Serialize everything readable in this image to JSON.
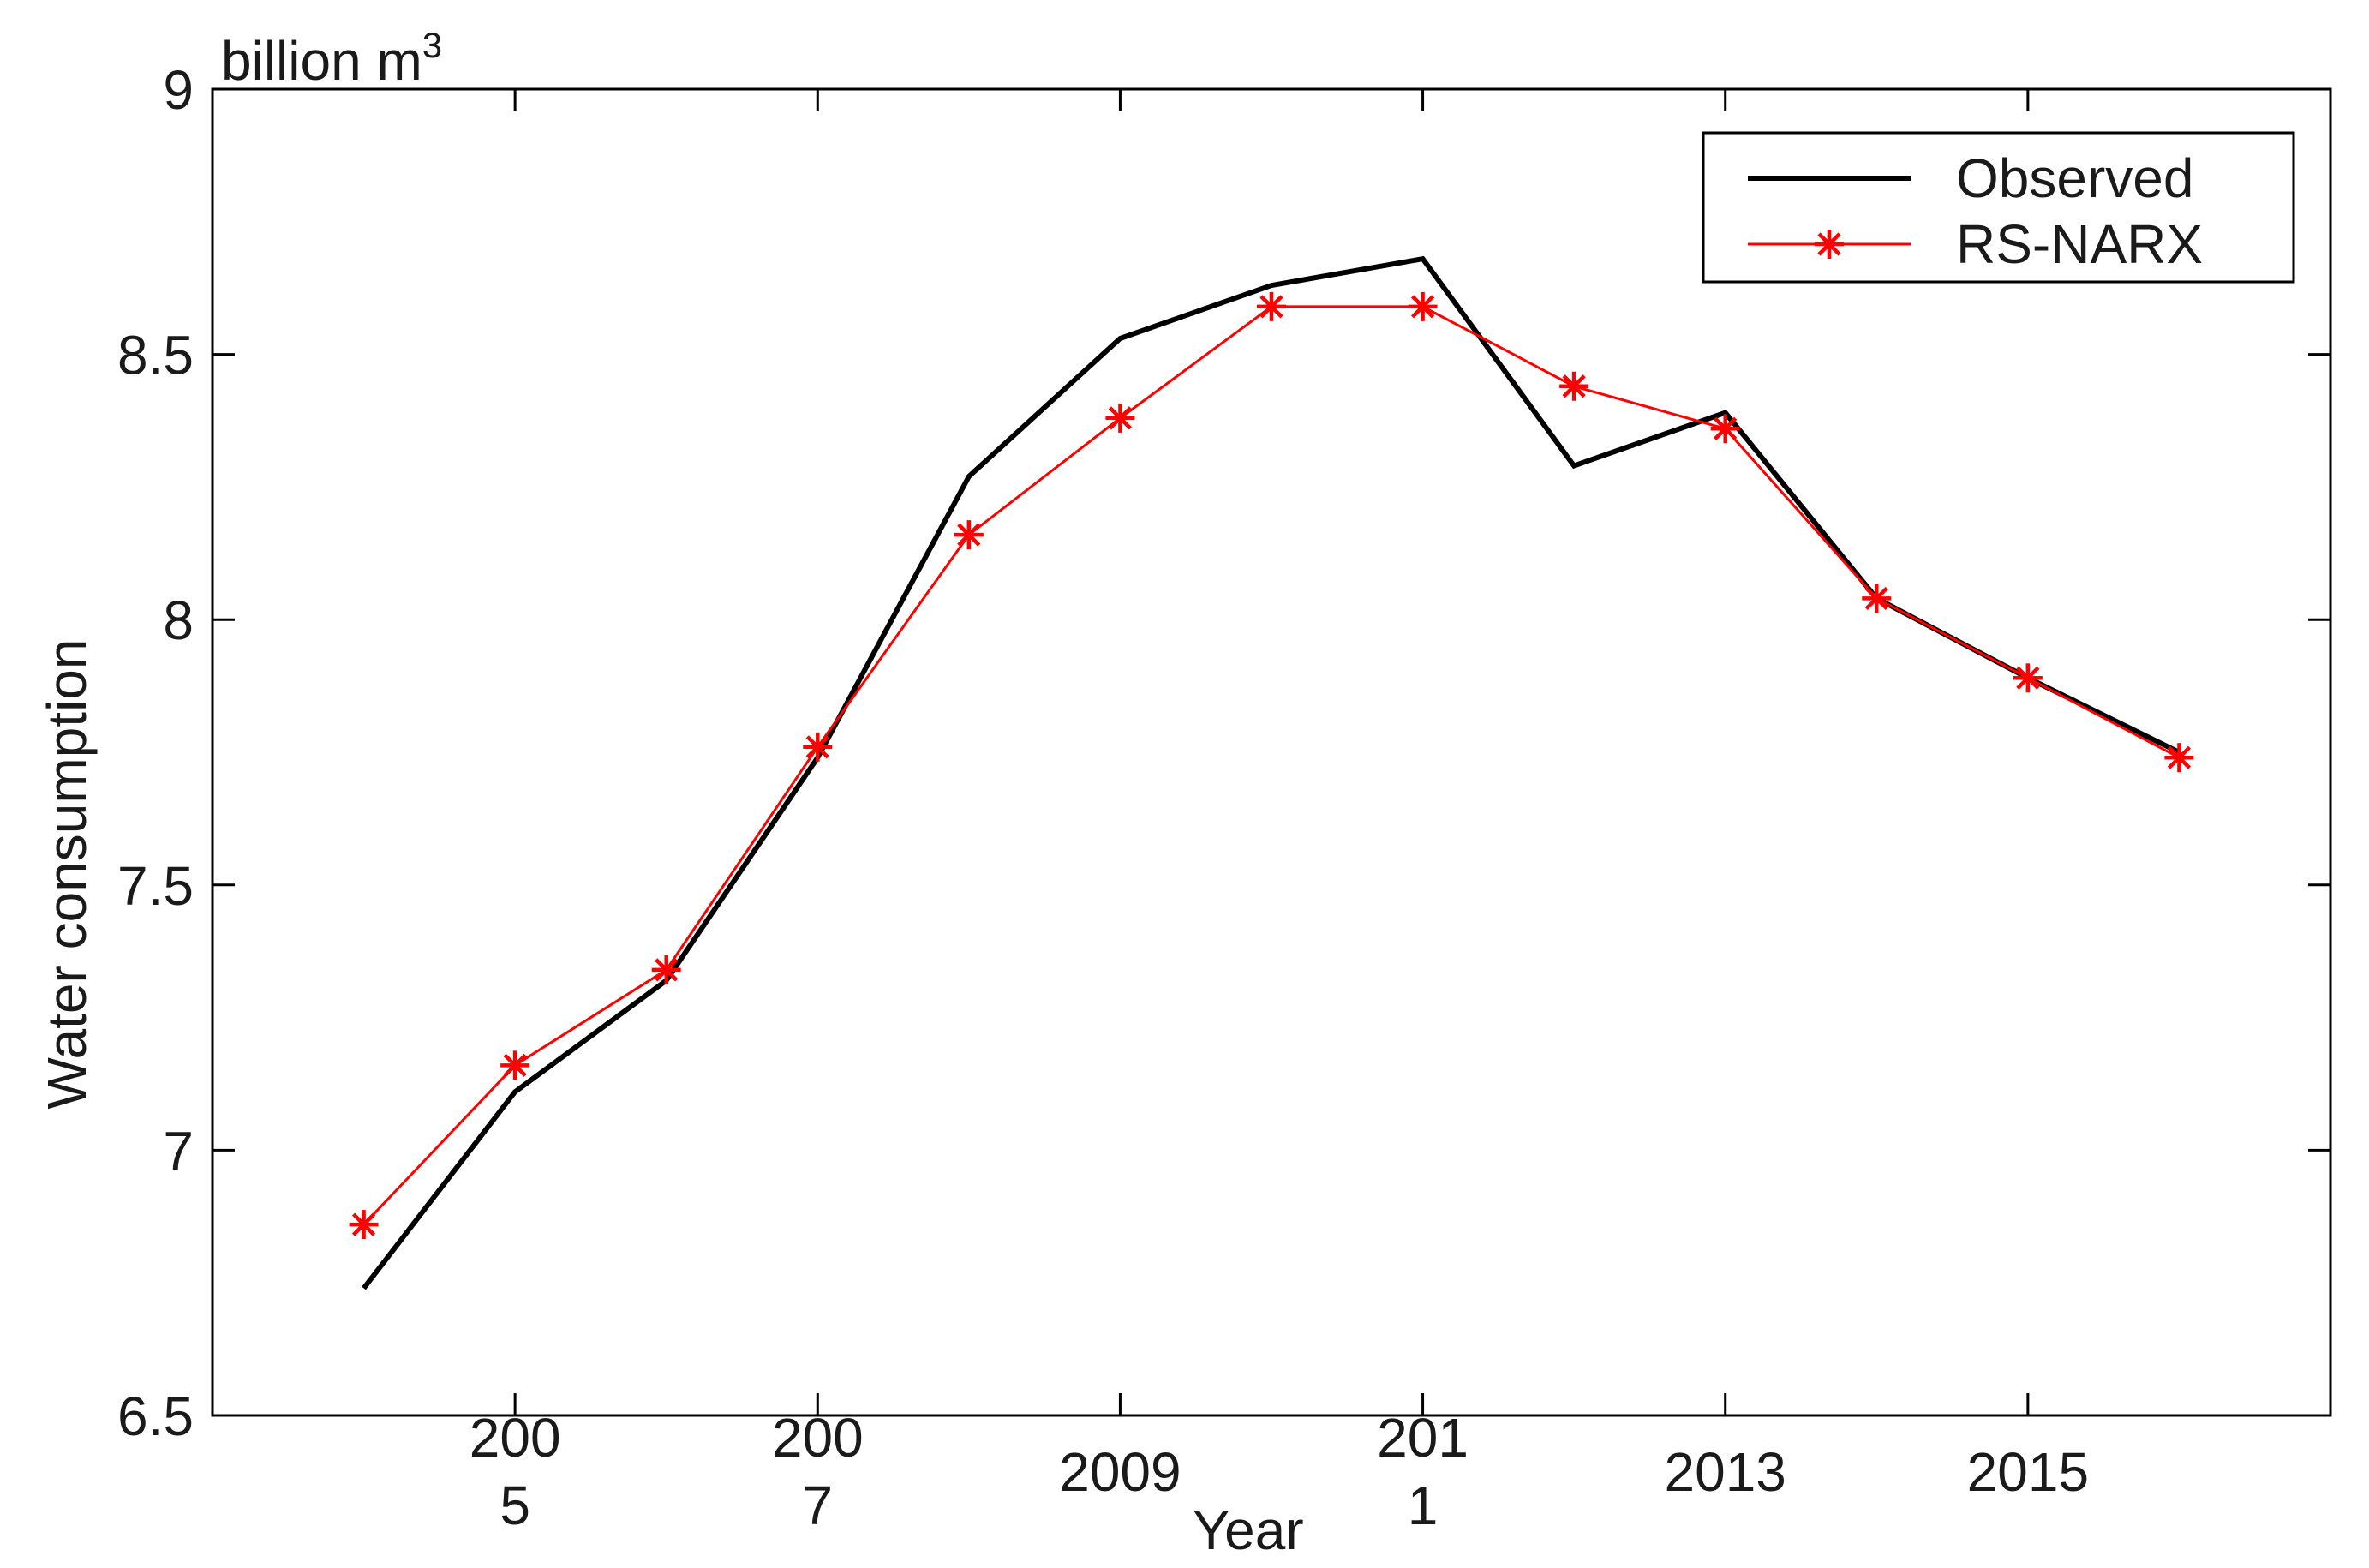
{
  "chart_data": {
    "type": "line",
    "x": [
      2004,
      2005,
      2006,
      2007,
      2008,
      2009,
      2010,
      2011,
      2012,
      2013,
      2014,
      2015,
      2016
    ],
    "series": [
      {
        "name": "Observed",
        "color": "#000000",
        "marker": "none",
        "values": [
          6.74,
          7.11,
          7.32,
          7.74,
          8.27,
          8.53,
          8.63,
          8.68,
          8.29,
          8.39,
          8.04,
          7.89,
          7.75
        ]
      },
      {
        "name": "RS-NARX",
        "color": "#ff0000",
        "marker": "asterisk",
        "values": [
          6.86,
          7.16,
          7.34,
          7.76,
          8.16,
          8.38,
          8.59,
          8.59,
          8.44,
          8.36,
          8.04,
          7.89,
          7.74
        ]
      }
    ],
    "xlim": [
      2003,
      2017
    ],
    "ylim": [
      6.5,
      9
    ],
    "x_ticks": [
      2005,
      2007,
      2009,
      2011,
      2013,
      2015
    ],
    "x_tick_labels": [
      [
        "200",
        "5"
      ],
      [
        "200",
        "7"
      ],
      [
        "2009"
      ],
      [
        "201",
        "1"
      ],
      [
        "2013"
      ],
      [
        "2015"
      ]
    ],
    "y_ticks": [
      6.5,
      7,
      7.5,
      8,
      8.5,
      9
    ],
    "y_tick_labels": [
      "6.5",
      "7",
      "7.5",
      "8",
      "8.5",
      "9"
    ],
    "xlabel": "Year",
    "ylabel": "Water consumption",
    "unit_label": "billion m",
    "unit_superscript": "3",
    "grid": false,
    "legend_position": "top-right"
  }
}
